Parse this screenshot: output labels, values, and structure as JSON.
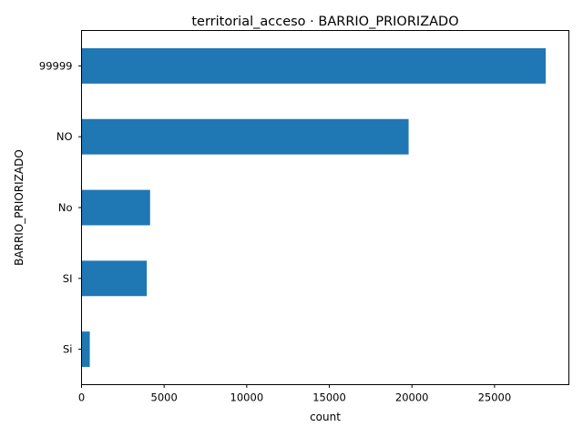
{
  "chart_data": {
    "type": "bar",
    "orientation": "horizontal",
    "title": "territorial_acceso · BARRIO_PRIORIZADO",
    "xlabel": "count",
    "ylabel": "BARRIO_PRIORIZADO",
    "categories": [
      "99999",
      "NO",
      "No",
      "SI",
      "Si"
    ],
    "values": [
      28100,
      19800,
      4150,
      3950,
      500
    ],
    "xlim": [
      0,
      29500
    ],
    "xticks": [
      0,
      5000,
      10000,
      15000,
      20000,
      25000
    ],
    "grid": false,
    "legend": "none",
    "bar_color": "#1f77b4"
  }
}
